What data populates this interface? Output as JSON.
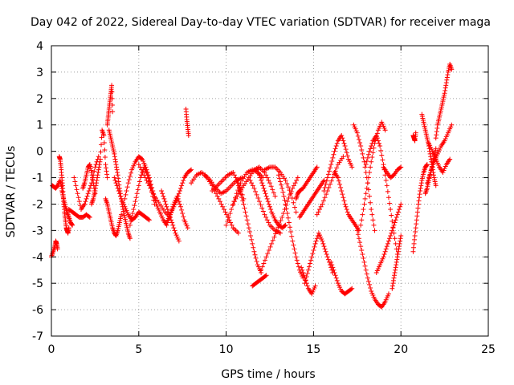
{
  "chart_data": {
    "type": "scatter",
    "title": "Day 042 of 2022, Sidereal Day-to-day VTEC variation (SDTVAR) for receiver maga",
    "xlabel": "GPS time / hours",
    "ylabel": "SDTVAR / TECUs",
    "xlim": [
      0,
      25
    ],
    "ylim": [
      -7,
      4
    ],
    "xticks": [
      0,
      5,
      10,
      15,
      20,
      25
    ],
    "yticks": [
      -7,
      -6,
      -5,
      -4,
      -3,
      -2,
      -1,
      0,
      1,
      2,
      3,
      4
    ],
    "grid": true,
    "marker": "+",
    "color": "#ff0000",
    "series": [
      {
        "name": "s01",
        "x": [
          0.0,
          0.1,
          0.2,
          0.25,
          0.3,
          0.35
        ],
        "y": [
          -4.0,
          -3.8,
          -3.6,
          -3.4,
          -3.5,
          -3.7
        ]
      },
      {
        "name": "s02",
        "x": [
          0.05,
          0.15,
          0.25,
          0.35,
          0.5,
          0.6
        ],
        "y": [
          -1.3,
          -1.35,
          -1.4,
          -1.3,
          -1.1,
          -1.4
        ]
      },
      {
        "name": "s03",
        "x": [
          0.45,
          0.5,
          0.55,
          0.6,
          0.65,
          0.7,
          0.75,
          0.8,
          0.85,
          0.9,
          0.95,
          1.0
        ],
        "y": [
          -0.2,
          -0.3,
          -0.6,
          -1.0,
          -1.4,
          -1.9,
          -2.3,
          -2.6,
          -2.9,
          -3.0,
          -3.1,
          -2.9
        ]
      },
      {
        "name": "s04",
        "x": [
          0.6,
          0.7,
          0.8,
          0.9,
          1.0,
          1.1,
          1.2
        ],
        "y": [
          -1.5,
          -1.8,
          -2.1,
          -2.3,
          -2.5,
          -2.7,
          -2.8
        ]
      },
      {
        "name": "s05",
        "x": [
          1.0,
          1.2,
          1.4,
          1.6,
          1.8,
          2.0,
          2.2
        ],
        "y": [
          -2.2,
          -2.3,
          -2.4,
          -2.5,
          -2.5,
          -2.4,
          -2.5
        ]
      },
      {
        "name": "s06",
        "x": [
          1.3,
          1.5,
          1.7,
          1.9,
          2.1,
          2.3,
          2.5,
          2.7
        ],
        "y": [
          -1.0,
          -1.6,
          -2.2,
          -2.0,
          -1.6,
          -1.2,
          -0.6,
          -0.2
        ]
      },
      {
        "name": "s07",
        "x": [
          1.8,
          1.9,
          2.0,
          2.1,
          2.2,
          2.3,
          2.4,
          2.5
        ],
        "y": [
          -1.4,
          -1.2,
          -0.9,
          -0.6,
          -0.5,
          -0.8,
          -1.2,
          -1.6
        ]
      },
      {
        "name": "s08",
        "x": [
          2.3,
          2.4,
          2.5,
          2.6,
          2.7,
          2.8,
          2.9,
          3.0,
          3.1,
          3.2
        ],
        "y": [
          -2.0,
          -1.8,
          -1.5,
          -1.1,
          -0.7,
          -0.3,
          0.8,
          0.6,
          -0.5,
          -1.0
        ]
      },
      {
        "name": "s09",
        "x": [
          3.2,
          3.25,
          3.3,
          3.35,
          3.4,
          3.45,
          3.5
        ],
        "y": [
          1.0,
          1.3,
          1.6,
          1.9,
          2.2,
          2.5,
          1.5
        ]
      },
      {
        "name": "s10",
        "x": [
          3.3,
          3.4,
          3.5,
          3.6,
          3.7,
          3.8,
          3.9,
          4.0,
          4.1,
          4.2,
          4.3,
          4.4,
          4.5
        ],
        "y": [
          0.8,
          0.5,
          0.2,
          -0.1,
          -0.5,
          -0.9,
          -1.4,
          -1.8,
          -2.2,
          -2.5,
          -2.8,
          -3.1,
          -3.3
        ]
      },
      {
        "name": "s11",
        "x": [
          3.1,
          3.2,
          3.3,
          3.4,
          3.5,
          3.6,
          3.7,
          3.8,
          3.9,
          4.0
        ],
        "y": [
          -1.8,
          -2.0,
          -2.3,
          -2.6,
          -2.9,
          -3.1,
          -3.2,
          -3.0,
          -2.7,
          -2.4
        ]
      },
      {
        "name": "s12",
        "x": [
          3.6,
          3.8,
          4.0,
          4.2,
          4.4,
          4.6,
          4.8,
          5.0,
          5.2,
          5.4,
          5.6
        ],
        "y": [
          -1.0,
          -1.4,
          -1.8,
          -2.1,
          -2.4,
          -2.6,
          -2.5,
          -2.3,
          -2.4,
          -2.5,
          -2.6
        ]
      },
      {
        "name": "s13",
        "x": [
          4.2,
          4.4,
          4.6,
          4.8,
          5.0,
          5.2,
          5.4,
          5.6,
          5.8,
          6.0
        ],
        "y": [
          -1.8,
          -1.2,
          -0.7,
          -0.4,
          -0.2,
          -0.3,
          -0.6,
          -1.0,
          -1.5,
          -2.0
        ]
      },
      {
        "name": "s14",
        "x": [
          4.5,
          4.7,
          4.9,
          5.1,
          5.3,
          5.5,
          5.7,
          5.9
        ],
        "y": [
          -2.8,
          -2.2,
          -1.6,
          -1.0,
          -0.6,
          -0.9,
          -1.4,
          -2.0
        ]
      },
      {
        "name": "s15",
        "x": [
          5.0,
          5.3,
          5.6,
          5.9,
          6.2,
          6.5,
          6.8
        ],
        "y": [
          -0.5,
          -0.9,
          -1.3,
          -1.7,
          -2.0,
          -2.3,
          -2.5
        ]
      },
      {
        "name": "s16",
        "x": [
          6.0,
          6.2,
          6.4,
          6.6,
          6.8,
          7.0,
          7.2,
          7.4,
          7.6,
          7.8
        ],
        "y": [
          -2.0,
          -2.3,
          -2.6,
          -2.8,
          -2.4,
          -2.0,
          -1.7,
          -2.1,
          -2.6,
          -2.9
        ]
      },
      {
        "name": "s17",
        "x": [
          6.3,
          6.5,
          6.7,
          6.9,
          7.1,
          7.3
        ],
        "y": [
          -1.5,
          -1.9,
          -2.3,
          -2.7,
          -3.1,
          -3.4
        ]
      },
      {
        "name": "s18",
        "x": [
          6.6,
          6.8,
          7.0,
          7.2,
          7.4,
          7.6,
          7.8,
          8.0
        ],
        "y": [
          -2.7,
          -2.4,
          -2.1,
          -1.8,
          -1.4,
          -1.0,
          -0.8,
          -0.7
        ]
      },
      {
        "name": "s19",
        "x": [
          7.7,
          7.75,
          7.8,
          7.85
        ],
        "y": [
          1.6,
          1.2,
          0.9,
          0.6
        ]
      },
      {
        "name": "s20",
        "x": [
          8.0,
          8.3,
          8.6,
          8.9,
          9.2,
          9.5,
          9.8,
          10.1,
          10.4,
          10.7
        ],
        "y": [
          -1.2,
          -0.9,
          -0.8,
          -1.0,
          -1.3,
          -1.7,
          -2.1,
          -2.5,
          -2.9,
          -3.1
        ]
      },
      {
        "name": "s21",
        "x": [
          8.8,
          9.1,
          9.4,
          9.7,
          10.0,
          10.3,
          10.6,
          10.9
        ],
        "y": [
          -0.9,
          -1.1,
          -1.4,
          -1.6,
          -1.5,
          -1.3,
          -1.1,
          -1.0
        ]
      },
      {
        "name": "s22",
        "x": [
          9.2,
          9.5,
          9.8,
          10.1,
          10.4,
          10.7,
          11.0
        ],
        "y": [
          -1.5,
          -1.3,
          -1.1,
          -0.9,
          -0.8,
          -1.2,
          -1.8
        ]
      },
      {
        "name": "s23",
        "x": [
          10.0,
          10.3,
          10.6,
          10.9,
          11.2,
          11.5,
          11.8,
          12.1
        ],
        "y": [
          -2.8,
          -2.2,
          -1.6,
          -1.1,
          -0.8,
          -0.7,
          -0.8,
          -1.0
        ]
      },
      {
        "name": "s24",
        "x": [
          10.4,
          10.7,
          11.0,
          11.3,
          11.6,
          11.9,
          12.2,
          12.5,
          12.8
        ],
        "y": [
          -2.0,
          -1.6,
          -1.3,
          -1.0,
          -0.7,
          -0.6,
          -0.8,
          -1.2,
          -1.7
        ]
      },
      {
        "name": "s25",
        "x": [
          10.6,
          10.8,
          11.0,
          11.2,
          11.4,
          11.6,
          11.8,
          12.0
        ],
        "y": [
          -1.1,
          -1.5,
          -2.0,
          -2.6,
          -3.2,
          -3.8,
          -4.3,
          -4.6
        ]
      },
      {
        "name": "s26",
        "x": [
          11.3,
          11.6,
          11.9,
          12.2,
          12.5,
          12.8,
          13.1
        ],
        "y": [
          -1.0,
          -1.4,
          -1.9,
          -2.4,
          -2.8,
          -3.0,
          -3.1
        ]
      },
      {
        "name": "s27",
        "x": [
          11.5,
          11.7,
          11.9,
          12.1,
          12.3
        ],
        "y": [
          -5.1,
          -5.0,
          -4.9,
          -4.8,
          -4.7
        ]
      },
      {
        "name": "s28",
        "x": [
          11.8,
          12.0,
          12.2,
          12.4,
          12.6,
          12.8,
          13.0,
          13.2,
          13.4
        ],
        "y": [
          -0.7,
          -1.1,
          -1.5,
          -1.9,
          -2.3,
          -2.6,
          -2.8,
          -2.9,
          -2.8
        ]
      },
      {
        "name": "s29",
        "x": [
          12.2,
          12.5,
          12.8,
          13.1,
          13.4,
          13.7,
          14.0
        ],
        "y": [
          -0.7,
          -0.6,
          -0.6,
          -0.8,
          -1.1,
          -1.6,
          -2.3
        ]
      },
      {
        "name": "s30",
        "x": [
          12.0,
          12.3,
          12.6,
          12.9,
          13.2,
          13.5,
          13.8,
          14.1
        ],
        "y": [
          -4.5,
          -4.0,
          -3.5,
          -3.0,
          -2.5,
          -1.9,
          -1.4,
          -1.0
        ]
      },
      {
        "name": "s31",
        "x": [
          13.0,
          13.2,
          13.4,
          13.6,
          13.8,
          14.0,
          14.2,
          14.4
        ],
        "y": [
          -0.9,
          -1.4,
          -2.0,
          -2.7,
          -3.4,
          -4.0,
          -4.5,
          -4.8
        ]
      },
      {
        "name": "s32",
        "x": [
          14.0,
          14.1,
          14.2,
          14.4,
          14.6,
          14.8,
          15.0,
          15.2
        ],
        "y": [
          -1.8,
          -1.6,
          -1.5,
          -1.4,
          -1.2,
          -1.0,
          -0.8,
          -0.6
        ]
      },
      {
        "name": "s33",
        "x": [
          14.2,
          14.4,
          14.6,
          14.8,
          15.0,
          15.2,
          15.4,
          15.6
        ],
        "y": [
          -2.5,
          -2.3,
          -2.1,
          -1.9,
          -1.7,
          -1.5,
          -1.3,
          -1.1
        ]
      },
      {
        "name": "s34",
        "x": [
          14.3,
          14.5,
          14.7,
          14.9,
          15.1
        ],
        "y": [
          -4.4,
          -4.8,
          -5.2,
          -5.4,
          -5.1
        ]
      },
      {
        "name": "s35",
        "x": [
          14.5,
          14.7,
          14.9,
          15.1,
          15.3,
          15.5,
          15.7,
          15.9,
          16.1
        ],
        "y": [
          -5.0,
          -4.5,
          -4.0,
          -3.5,
          -3.1,
          -3.4,
          -3.8,
          -4.2,
          -4.6
        ]
      },
      {
        "name": "s36",
        "x": [
          15.2,
          15.5,
          15.8,
          16.1,
          16.4,
          16.7
        ],
        "y": [
          -2.4,
          -2.0,
          -1.5,
          -1.0,
          -0.5,
          -0.2
        ]
      },
      {
        "name": "s37",
        "x": [
          15.6,
          15.8,
          16.0,
          16.2,
          16.4,
          16.6,
          16.8,
          17.0,
          17.2
        ],
        "y": [
          -1.5,
          -1.0,
          -0.5,
          0.0,
          0.4,
          0.6,
          0.2,
          -0.3,
          -0.6
        ]
      },
      {
        "name": "s38",
        "x": [
          16.0,
          16.2,
          16.4,
          16.6,
          16.8,
          17.0,
          17.2
        ],
        "y": [
          -4.2,
          -4.6,
          -5.0,
          -5.3,
          -5.4,
          -5.3,
          -5.2
        ]
      },
      {
        "name": "s39",
        "x": [
          16.2,
          16.4,
          16.6,
          16.8,
          17.0,
          17.2,
          17.4,
          17.6
        ],
        "y": [
          -0.8,
          -1.0,
          -1.5,
          -2.0,
          -2.4,
          -2.6,
          -2.8,
          -3.0
        ]
      },
      {
        "name": "s40",
        "x": [
          17.3,
          17.5,
          17.7,
          17.9,
          18.1,
          18.3,
          18.5
        ],
        "y": [
          1.0,
          0.7,
          0.2,
          -0.4,
          -1.2,
          -2.2,
          -3.0
        ]
      },
      {
        "name": "s41",
        "x": [
          17.5,
          17.7,
          17.9,
          18.1,
          18.3,
          18.5,
          18.7,
          18.9,
          19.1,
          19.3
        ],
        "y": [
          -3.0,
          -3.6,
          -4.2,
          -4.8,
          -5.3,
          -5.6,
          -5.8,
          -5.9,
          -5.7,
          -5.4
        ]
      },
      {
        "name": "s42",
        "x": [
          17.7,
          17.9,
          18.1,
          18.3,
          18.5,
          18.7,
          18.9,
          19.1
        ],
        "y": [
          -2.8,
          -2.0,
          -1.2,
          -0.4,
          0.3,
          0.8,
          1.1,
          0.8
        ]
      },
      {
        "name": "s43",
        "x": [
          18.0,
          18.2,
          18.4,
          18.6,
          18.8,
          19.0,
          19.2,
          19.4,
          19.6,
          19.8
        ],
        "y": [
          -0.5,
          0.0,
          0.4,
          0.6,
          0.2,
          -0.5,
          -1.3,
          -2.2,
          -3.1,
          -3.9
        ]
      },
      {
        "name": "s44",
        "x": [
          18.6,
          18.8,
          19.0,
          19.2,
          19.4,
          19.6,
          19.8,
          20.0
        ],
        "y": [
          -4.6,
          -4.3,
          -4.0,
          -3.6,
          -3.2,
          -2.8,
          -2.4,
          -2.0
        ]
      },
      {
        "name": "s45",
        "x": [
          19.0,
          19.2,
          19.4,
          19.6,
          19.8,
          20.0
        ],
        "y": [
          -0.6,
          -0.8,
          -1.0,
          -0.9,
          -0.7,
          -0.6
        ]
      },
      {
        "name": "s46",
        "x": [
          19.5,
          19.6,
          19.7,
          19.8,
          19.9,
          20.0
        ],
        "y": [
          -5.2,
          -4.8,
          -4.4,
          -4.0,
          -3.6,
          -3.2
        ]
      },
      {
        "name": "s47",
        "x": [
          20.7,
          20.8,
          20.9,
          21.0,
          21.1,
          21.2,
          21.3,
          21.4,
          21.5
        ],
        "y": [
          -3.8,
          -3.2,
          -2.6,
          -2.0,
          -1.5,
          -1.1,
          -0.8,
          -0.6,
          -0.5
        ]
      },
      {
        "name": "s48",
        "x": [
          20.7,
          20.75,
          20.8,
          20.85
        ],
        "y": [
          0.6,
          0.5,
          0.4,
          0.7
        ]
      },
      {
        "name": "s49",
        "x": [
          21.2,
          21.3,
          21.4,
          21.5,
          21.6,
          21.7,
          21.8,
          21.9,
          22.0
        ],
        "y": [
          1.4,
          1.1,
          0.8,
          0.5,
          0.2,
          -0.2,
          -0.6,
          -1.0,
          -1.3
        ]
      },
      {
        "name": "s50",
        "x": [
          21.5,
          21.7,
          21.9,
          22.1,
          22.3,
          22.5,
          22.7,
          22.9
        ],
        "y": [
          -1.2,
          -0.8,
          -0.4,
          -0.1,
          0.2,
          0.4,
          0.7,
          1.0
        ]
      },
      {
        "name": "s51",
        "x": [
          21.6,
          21.8,
          22.0,
          22.2,
          22.4,
          22.6,
          22.8
        ],
        "y": [
          0.3,
          0.0,
          -0.3,
          -0.6,
          -0.8,
          -0.5,
          -0.3
        ]
      },
      {
        "name": "s52",
        "x": [
          22.0,
          22.1,
          22.2,
          22.3,
          22.4,
          22.5,
          22.6,
          22.7,
          22.8,
          22.9
        ],
        "y": [
          0.5,
          1.0,
          1.3,
          1.6,
          1.9,
          2.2,
          2.6,
          3.0,
          3.3,
          3.1
        ]
      },
      {
        "name": "s53",
        "x": [
          21.4,
          21.5,
          21.6,
          21.7,
          21.8,
          21.9,
          22.0
        ],
        "y": [
          -1.6,
          -1.4,
          -1.1,
          -0.8,
          -0.5,
          -0.2,
          0.1
        ]
      }
    ]
  }
}
